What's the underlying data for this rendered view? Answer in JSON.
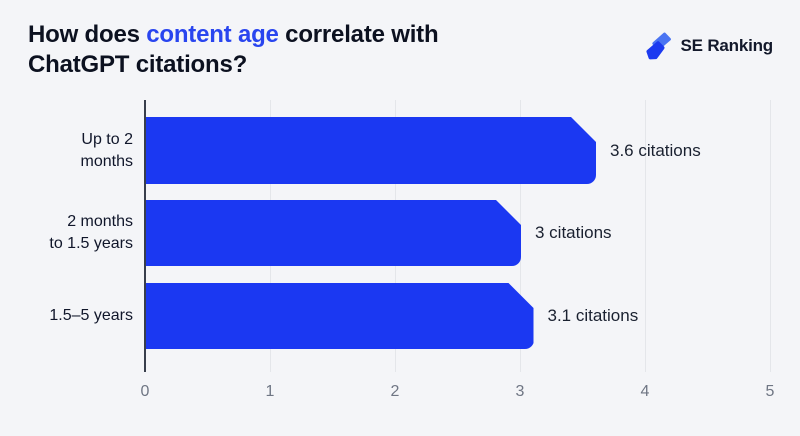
{
  "page": {
    "background": "#f4f5f8"
  },
  "header": {
    "title_prefix": "How does ",
    "title_accent": "content age",
    "title_suffix": " correlate with ChatGPT citations?",
    "accent_color": "#2945ef",
    "logo_text": "SE Ranking"
  },
  "chart_data": {
    "type": "bar",
    "orientation": "horizontal",
    "title": "How does content age correlate with ChatGPT citations?",
    "categories": [
      "Up to 2 months",
      "2 months to 1.5 years",
      "1.5–5 years"
    ],
    "category_lines": [
      [
        "Up to 2",
        "months"
      ],
      [
        "2 months",
        "to 1.5 years"
      ],
      [
        "1.5–5 years",
        ""
      ]
    ],
    "values": [
      3.6,
      3,
      3.1
    ],
    "value_labels": [
      "3.6 citations",
      "3 citations",
      "3.1 citations"
    ],
    "x_ticks": [
      "0",
      "1",
      "2",
      "3",
      "4",
      "5"
    ],
    "xlim": [
      0,
      5
    ],
    "xlabel": "",
    "ylabel": "",
    "bar_color": "#1b38f2",
    "gridline_color": "#e4e6ea",
    "axis_color": "#383e4c",
    "grid": "vertical",
    "legend": "none"
  }
}
